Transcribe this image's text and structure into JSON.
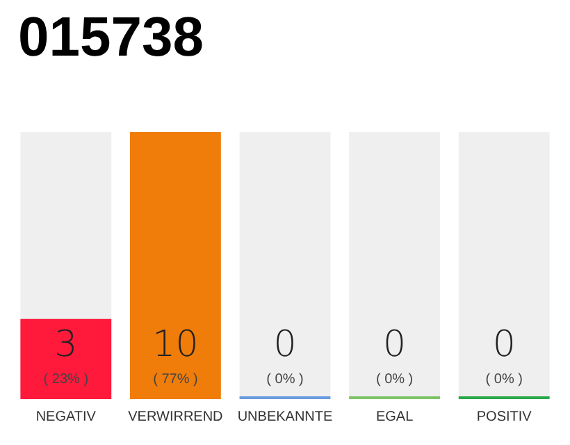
{
  "chart_data": {
    "type": "bar",
    "title": "015738",
    "categories": [
      "NEGATIV",
      "VERWIRREND",
      "UNBEKANNTE",
      "EGAL",
      "POSITIV"
    ],
    "values": [
      3,
      10,
      0,
      0,
      0
    ],
    "colors": [
      "#ff1a3c",
      "#f07d0a",
      "#6a9be0",
      "#7cc464",
      "#2aa84a"
    ],
    "value_labels": [
      "3\n( 23% )",
      "10\n( 77% )",
      "0\n( 0% )",
      "0\n( 0% )",
      "0\n( 0% )"
    ],
    "ylim": [
      0,
      10
    ]
  }
}
